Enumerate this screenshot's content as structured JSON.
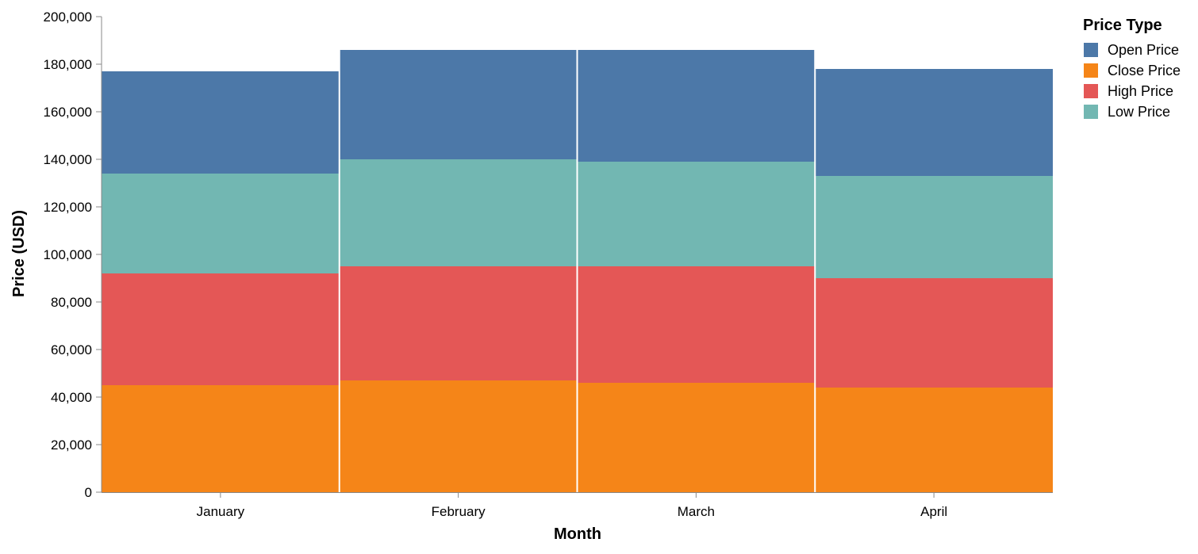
{
  "chart_data": {
    "type": "bar",
    "stacked": true,
    "title": "",
    "xlabel": "Month",
    "ylabel": "Price (USD)",
    "categories": [
      "January",
      "February",
      "March",
      "April"
    ],
    "ylim": [
      0,
      200000
    ],
    "yticks": [
      0,
      20000,
      40000,
      60000,
      80000,
      100000,
      120000,
      140000,
      160000,
      180000,
      200000
    ],
    "ytick_labels": [
      "0",
      "20,000",
      "40,000",
      "60,000",
      "80,000",
      "100,000",
      "120,000",
      "140,000",
      "160,000",
      "180,000",
      "200,000"
    ],
    "grid": false,
    "legend": {
      "title": "Price Type",
      "position": "top-right",
      "entries": [
        "Open Price",
        "Close Price",
        "High Price",
        "Low Price"
      ]
    },
    "stack_order_bottom_to_top": [
      "Close Price",
      "High Price",
      "Low Price",
      "Open Price"
    ],
    "series": [
      {
        "name": "Open Price",
        "color": "#4c78a8",
        "values": [
          43000,
          46000,
          47000,
          45000
        ]
      },
      {
        "name": "Close Price",
        "color": "#f58518",
        "values": [
          45000,
          47000,
          46000,
          44000
        ]
      },
      {
        "name": "High Price",
        "color": "#e45756",
        "values": [
          47000,
          48000,
          49000,
          46000
        ]
      },
      {
        "name": "Low Price",
        "color": "#72b7b2",
        "values": [
          42000,
          45000,
          44000,
          43000
        ]
      }
    ]
  }
}
